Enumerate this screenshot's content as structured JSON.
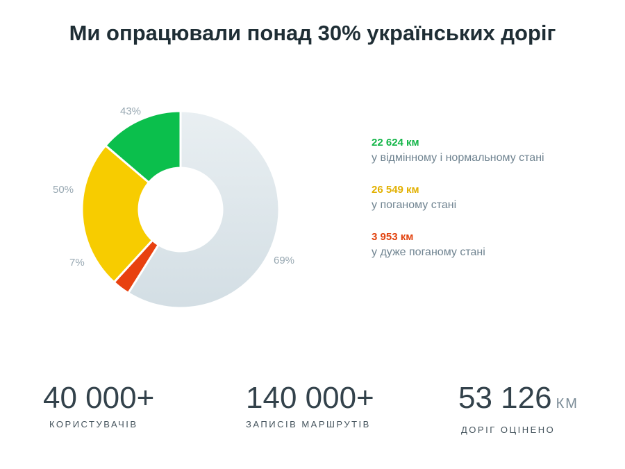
{
  "title": "Ми опрацювали понад 30% українських доріг",
  "chart_data": {
    "type": "pie",
    "slices": [
      {
        "label": "43%",
        "value": 43,
        "color": "#0bbf4c"
      },
      {
        "label": "50%",
        "value": 50,
        "color": "#f7cc00"
      },
      {
        "label": "7%",
        "value": 7,
        "color": "#e8410f"
      },
      {
        "label": "69%",
        "value": 69,
        "color": "#dfe7ec"
      }
    ],
    "legend": [
      {
        "value": "22 624 км",
        "description": "у відмінному і нормальному стані",
        "color": "#13b548"
      },
      {
        "value": "26 549 км",
        "description": "у поганому стані",
        "color": "#e2b000"
      },
      {
        "value": "3 953 км",
        "description": "у дуже поганому стані",
        "color": "#e2420e"
      }
    ],
    "legend_placement": "right"
  },
  "stats": [
    {
      "number": "40 000+",
      "unit": "",
      "label": "КОРИСТУВАЧІВ"
    },
    {
      "number": "140 000+",
      "unit": "",
      "label": "ЗАПИСІВ МАРШРУТІВ"
    },
    {
      "number": "53 126",
      "unit": "КМ",
      "label": "ДОРІГ ОЦІНЕНО"
    }
  ]
}
